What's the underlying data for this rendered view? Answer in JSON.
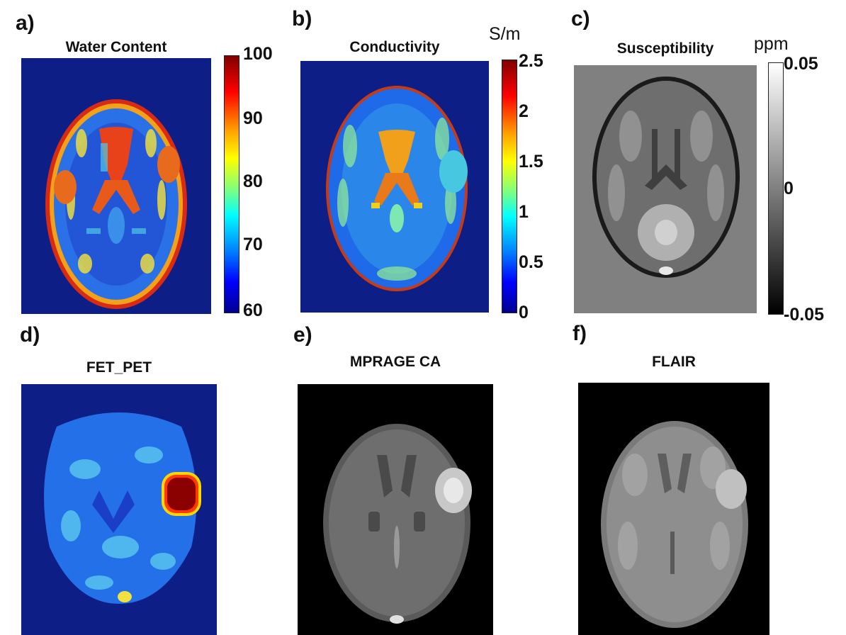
{
  "panels": [
    {
      "label": "a)",
      "title": "Water Content",
      "colorbar": {
        "unit": "",
        "ticks": [
          "100",
          "90",
          "80",
          "70",
          "60"
        ]
      }
    },
    {
      "label": "b)",
      "title": "Conductivity",
      "colorbar": {
        "unit": "S/m",
        "ticks": [
          "2.5",
          "2",
          "1.5",
          "1",
          "0.5",
          "0"
        ]
      }
    },
    {
      "label": "c)",
      "title": "Susceptibility",
      "colorbar": {
        "unit": "ppm",
        "ticks": [
          "0.05",
          "0",
          "-0.05"
        ]
      }
    },
    {
      "label": "d)",
      "title": "FET_PET"
    },
    {
      "label": "e)",
      "title": "MPRAGE CA"
    },
    {
      "label": "f)",
      "title": "FLAIR"
    }
  ],
  "colors": {
    "jet_background": "#0d1f86",
    "gray_background": "#808080",
    "black_background": "#000000",
    "lesion_core": "#8b0000",
    "lesion_rim": "#ffd400"
  }
}
